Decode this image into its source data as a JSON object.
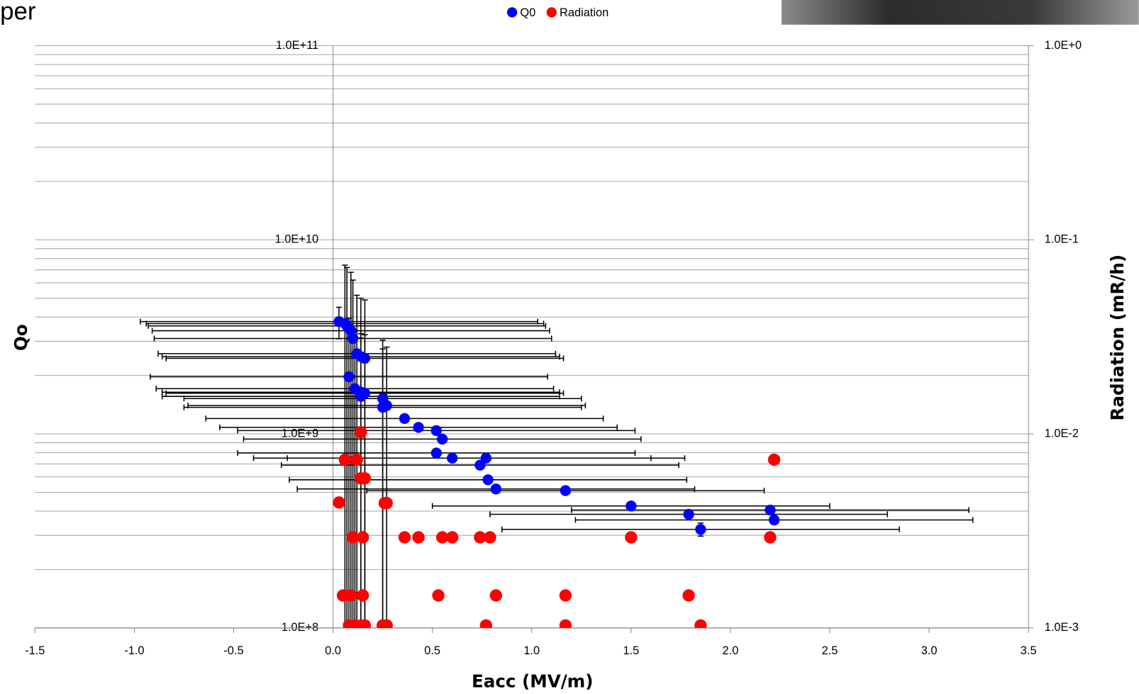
{
  "header_fragment": "per",
  "chart_data": {
    "type": "scatter",
    "x_label": "Eacc (MV/m)",
    "y_label": "Qo",
    "y2_label": "Radiation (mR/h)",
    "xlim": [
      -1.5,
      3.5
    ],
    "xticks": [
      -1.5,
      {
        "value": -1,
        "label": "-1.0"
      },
      -0.5,
      {
        "value": 0,
        "label": "0.0"
      },
      0.5,
      {
        "value": 1,
        "label": "1.0"
      },
      1.5,
      {
        "value": 2,
        "label": "2.0"
      },
      2.5,
      {
        "value": 3,
        "label": "3.0"
      },
      3.5
    ],
    "ylim": [
      100000000.0,
      100000000000.0
    ],
    "yticks": [
      {
        "value": 100000000.0,
        "label": "1.0E+8"
      },
      {
        "value": 1000000000.0,
        "label": "1.0E+9"
      },
      {
        "value": 10000000000.0,
        "label": "1.0E+10"
      },
      {
        "value": 100000000000.0,
        "label": "1.0E+11"
      }
    ],
    "y2lim": [
      0.001,
      1
    ],
    "y2ticks": [
      {
        "value": 0.001,
        "label": "1.0E-3"
      },
      {
        "value": 0.01,
        "label": "1.0E-2"
      },
      {
        "value": 0.1,
        "label": "1.0E-1"
      },
      {
        "value": 1,
        "label": "1.0E+0"
      }
    ],
    "log_y": true,
    "grid": true,
    "minor_grid": true,
    "legend": "top",
    "series": [
      {
        "name": "Q0",
        "color": "#0000ff",
        "x": [
          0.03,
          0.06,
          0.07,
          0.09,
          0.1,
          0.12,
          0.14,
          0.16,
          0.08,
          0.11,
          0.14,
          0.16,
          0.14,
          0.25,
          0.27,
          0.25,
          0.36,
          0.43,
          0.52,
          0.55,
          0.52,
          0.6,
          0.74,
          0.77,
          0.78,
          0.82,
          1.17,
          1.5,
          2.2,
          1.79,
          2.22,
          1.85
        ],
        "values": [
          3790000000.0,
          3700000000.0,
          3600000000.0,
          3400000000.0,
          3100000000.0,
          2590000000.0,
          2500000000.0,
          2450000000.0,
          1970000000.0,
          1710000000.0,
          1640000000.0,
          1620000000.0,
          1560000000.0,
          1520000000.0,
          1400000000.0,
          1370000000.0,
          1200000000.0,
          1080000000.0,
          1040000000.0,
          940000000.0,
          797000000.0,
          750000000.0,
          690000000.0,
          750000000.0,
          580000000.0,
          520000000.0,
          510000000.0,
          425000000.0,
          405000000.0,
          385000000.0,
          360000000.0,
          322000000.0
        ],
        "xerr": [
          1,
          1,
          1,
          1,
          1,
          1,
          1,
          1,
          1,
          1,
          1,
          1,
          1,
          1,
          1,
          1,
          1,
          1,
          1,
          1,
          1,
          1,
          1,
          1,
          1,
          1,
          1,
          1,
          1,
          1,
          1,
          1
        ],
        "yerr": [
          700000000.0,
          3700000000.0,
          3600000000.0,
          3400000000.0,
          3100000000.0,
          2590000000.0,
          2500000000.0,
          2450000000.0,
          1970000000.0,
          1710000000.0,
          1640000000.0,
          1620000000.0,
          1560000000.0,
          1520000000.0,
          1400000000.0,
          1370000000.0,
          0,
          0,
          0,
          0,
          0,
          0,
          0,
          0,
          0,
          0,
          0,
          0,
          0,
          0,
          0,
          25000000.0
        ]
      },
      {
        "name": "Radiation",
        "color": "#ff0000",
        "axis": "y2",
        "x": [
          0.03,
          0.06,
          0.12,
          0.14,
          0.14,
          0.16,
          0.26,
          0.27,
          0.1,
          0.15,
          0.36,
          0.43,
          0.55,
          0.6,
          0.74,
          0.79,
          1.5,
          2.2,
          2.22,
          0.05,
          0.09,
          0.15,
          0.53,
          0.82,
          1.17,
          1.79,
          0.08,
          0.11,
          0.14,
          0.16,
          0.25,
          0.27,
          0.77,
          1.17,
          1.85
        ],
        "values": [
          0.00443,
          0.00736,
          0.00736,
          0.0102,
          0.0059,
          0.0059,
          0.0044,
          0.0044,
          0.00293,
          0.00293,
          0.00293,
          0.00293,
          0.00293,
          0.00293,
          0.00293,
          0.00293,
          0.00293,
          0.00293,
          0.00736,
          0.00147,
          0.00147,
          0.00147,
          0.00147,
          0.00147,
          0.00147,
          0.00147,
          0.00103,
          0.00103,
          0.00103,
          0.00103,
          0.00103,
          0.00103,
          0.00103,
          0.00103,
          0.00103
        ]
      }
    ]
  }
}
